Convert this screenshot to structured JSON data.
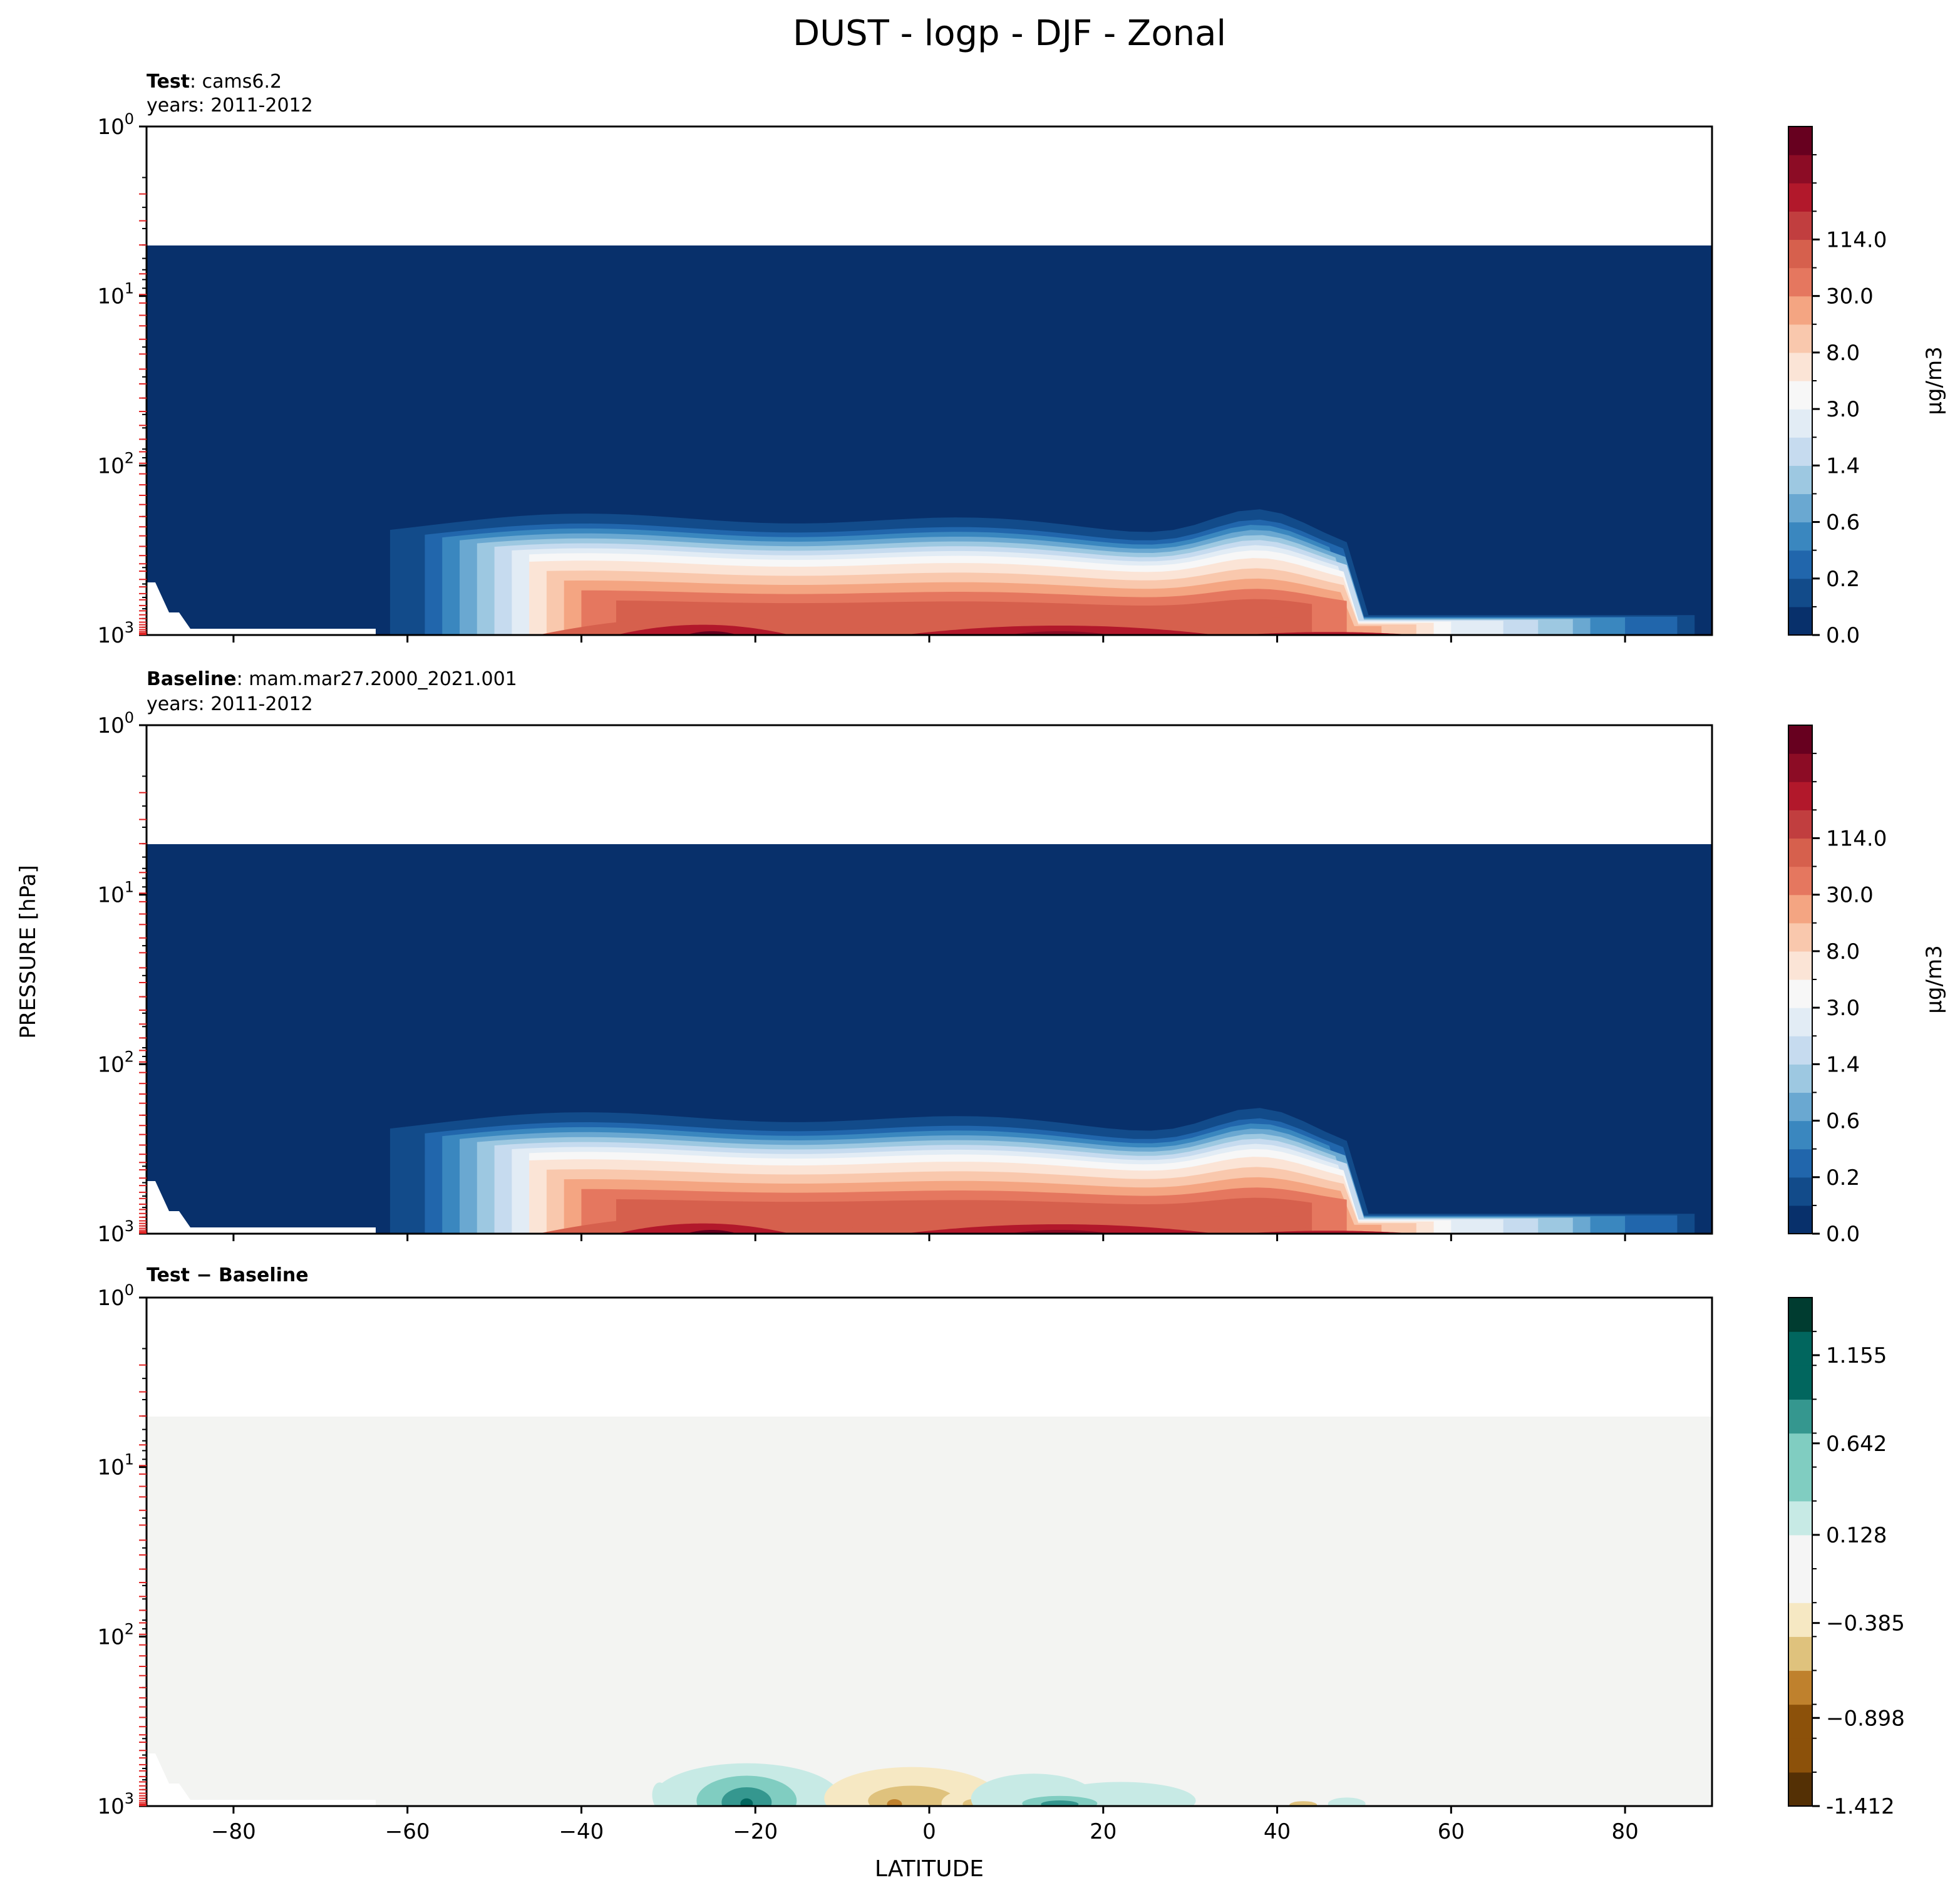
{
  "title": "DUST - logp - DJF - Zonal",
  "colors": {
    "background_blue": "#08306b",
    "diff_background": "#f3f4f2",
    "rdbu_levels": [
      "#08306b",
      "#124b8a",
      "#2166ac",
      "#3a87bf",
      "#6aa8d1",
      "#9dc8e1",
      "#c6dbef",
      "#e2ecf5",
      "#f7f7f7",
      "#fbe4d6",
      "#f9c8ad",
      "#f4a582",
      "#e5775f",
      "#d6604d",
      "#c13e3f",
      "#b2182b",
      "#8c0c25",
      "#67001f"
    ],
    "brbg_levels": [
      "#543005",
      "#8c510a",
      "#bf812d",
      "#dfc27d",
      "#f6e8c3",
      "#f5f5f5",
      "#c7eae5",
      "#80cdc1",
      "#35978f",
      "#01665e",
      "#003c30"
    ]
  },
  "chart_data": [
    {
      "type": "contour",
      "panel": "test",
      "label_bold": "Test",
      "label_case": ": cams6.2",
      "years": "years: 2011-2012",
      "ylabel": "PRESSURE [hPa]",
      "xlabel": "",
      "yscale": "log",
      "xlim": [
        -90,
        90
      ],
      "ylim": [
        1000,
        1
      ],
      "ytick_values": [
        1,
        10,
        100,
        1000
      ],
      "ytick_labels": [
        "10^0",
        "10^1",
        "10^2",
        "10^3"
      ],
      "xtick_values": [
        -80,
        -60,
        -40,
        -20,
        0,
        20,
        40,
        60,
        80
      ],
      "xtick_labels": [
        "",
        "",
        "",
        "",
        "",
        "",
        "",
        "",
        ""
      ],
      "colorbar": {
        "units": "μg/m3",
        "tick_labels": [
          "0.0",
          "0.2",
          "0.6",
          "1.4",
          "3.0",
          "8.0",
          "30.0",
          "114.0"
        ]
      },
      "model_top_hpa": 5,
      "note": "Values peak near the surface (~850-1000 hPa), strongest between -30 and 30 latitude and near 40N"
    },
    {
      "type": "contour",
      "panel": "baseline",
      "label_bold": "Baseline",
      "label_case": ": mam.mar27.2000_2021.001",
      "years": "years: 2011-2012",
      "yscale": "log",
      "xlim": [
        -90,
        90
      ],
      "ylim": [
        1000,
        1
      ],
      "ytick_values": [
        1,
        10,
        100,
        1000
      ],
      "ytick_labels": [
        "10^0",
        "10^1",
        "10^2",
        "10^3"
      ],
      "xtick_values": [
        -80,
        -60,
        -40,
        -20,
        0,
        20,
        40,
        60,
        80
      ],
      "xtick_labels": [
        "",
        "",
        "",
        "",
        "",
        "",
        "",
        "",
        ""
      ],
      "colorbar": {
        "units": "μg/m3",
        "tick_labels": [
          "0.0",
          "0.2",
          "0.6",
          "1.4",
          "3.0",
          "8.0",
          "30.0",
          "114.0"
        ]
      },
      "model_top_hpa": 5
    },
    {
      "type": "contour",
      "panel": "difference",
      "label_bold": "Test − Baseline",
      "label_case": "",
      "years": "",
      "xlabel": "LATITUDE",
      "yscale": "log",
      "xlim": [
        -90,
        90
      ],
      "ylim": [
        1000,
        1
      ],
      "ytick_values": [
        1,
        10,
        100,
        1000
      ],
      "ytick_labels": [
        "10^0",
        "10^1",
        "10^2",
        "10^3"
      ],
      "xtick_values": [
        -80,
        -60,
        -40,
        -20,
        0,
        20,
        40,
        60,
        80
      ],
      "xtick_labels": [
        "−80",
        "−60",
        "−40",
        "−20",
        "0",
        "20",
        "40",
        "60",
        "80"
      ],
      "colorbar": {
        "units": "",
        "tick_labels": [
          "-1.412",
          "−0.898",
          "−0.385",
          "0.128",
          "0.642",
          "1.155"
        ]
      },
      "model_top_hpa": 5
    }
  ]
}
